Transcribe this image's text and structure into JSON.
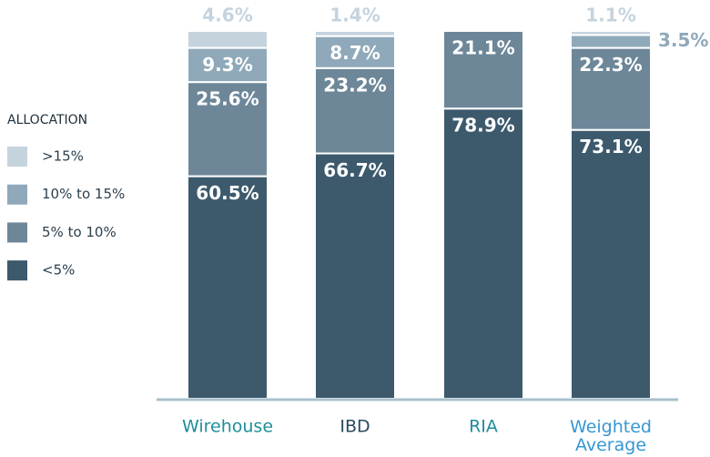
{
  "chart_data": {
    "type": "stacked_bar",
    "categories": [
      "Wirehouse",
      "IBD",
      "RIA",
      "Weighted Average"
    ],
    "category_colors": [
      "#1f8d9b",
      "#2a4b61",
      "#1f8d9b",
      "#3597d3"
    ],
    "legend_title": "ALLOCATION",
    "series": [
      {
        "name": "<5%",
        "color": "#3d5a6d",
        "values": [
          60.5,
          66.7,
          78.9,
          73.1
        ],
        "value_labels": [
          "60.5%",
          "66.7%",
          "78.9%",
          "73.1%"
        ]
      },
      {
        "name": "5% to 10%",
        "color": "#6d8799",
        "values": [
          25.6,
          23.2,
          21.1,
          22.3
        ],
        "value_labels": [
          "25.6%",
          "23.2%",
          "21.1%",
          "22.3%"
        ]
      },
      {
        "name": "10% to 15%",
        "color": "#8fa9ba",
        "values": [
          9.3,
          8.7,
          null,
          3.5
        ],
        "value_labels": [
          "9.3%",
          "8.7%",
          null,
          "3.5%"
        ]
      },
      {
        "name": ">15%",
        "color": "#c5d3dd",
        "values": [
          4.6,
          1.4,
          null,
          1.1
        ],
        "value_labels": [
          "4.6%",
          "1.4%",
          null,
          "1.1%"
        ]
      }
    ],
    "ylim": [
      0,
      100
    ],
    "legend": "left"
  }
}
